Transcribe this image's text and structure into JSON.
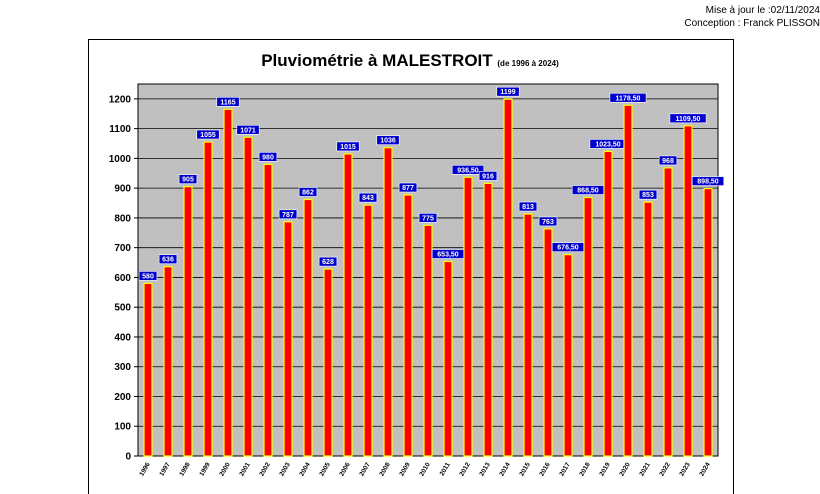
{
  "header": {
    "updated": "Mise à jour le :02/11/2024",
    "author": "Conception : Franck PLISSON"
  },
  "chart_data": {
    "type": "bar",
    "title": "Pluviométrie à MALESTROIT",
    "subtitle": "(de 1996 à 2024)",
    "xlabel": "",
    "ylabel": "",
    "ylim": [
      0,
      1250
    ],
    "yticks": [
      0,
      100,
      200,
      300,
      400,
      500,
      600,
      700,
      800,
      900,
      1000,
      1100,
      1200
    ],
    "grid": true,
    "categories": [
      "1996",
      "1997",
      "1998",
      "1999",
      "2000",
      "2001",
      "2002",
      "2003",
      "2004",
      "2005",
      "2006",
      "2007",
      "2008",
      "2009",
      "2010",
      "2011",
      "2012",
      "2013",
      "2014",
      "2015",
      "2016",
      "2017",
      "2018",
      "2019",
      "2020",
      "2021",
      "2022",
      "2023",
      "2024"
    ],
    "values": [
      580,
      636,
      905,
      1055,
      1165,
      1071,
      980,
      787,
      862,
      628,
      1015,
      843,
      1036,
      877,
      775,
      653.5,
      936.5,
      916,
      1199,
      813,
      763,
      676.5,
      868.5,
      1023.5,
      1178.5,
      853,
      968,
      1109.5,
      898.5
    ],
    "value_labels": [
      "580",
      "636",
      "905",
      "1055",
      "1165",
      "1071",
      "980",
      "787",
      "862",
      "628",
      "1015",
      "843",
      "1036",
      "877",
      "775",
      "653,50",
      "936,50",
      "916",
      "1199",
      "813",
      "763",
      "676,50",
      "868,50",
      "1023,50",
      "1178,50",
      "853",
      "968",
      "1109,50",
      "898,50"
    ],
    "colors": {
      "plot_bg": "#c0c0c0",
      "bar_fill": "#ff0000",
      "bar_stroke": "#ffff00",
      "label_bg": "#0000cc",
      "label_text": "#ffffff",
      "grid": "#000000"
    }
  }
}
